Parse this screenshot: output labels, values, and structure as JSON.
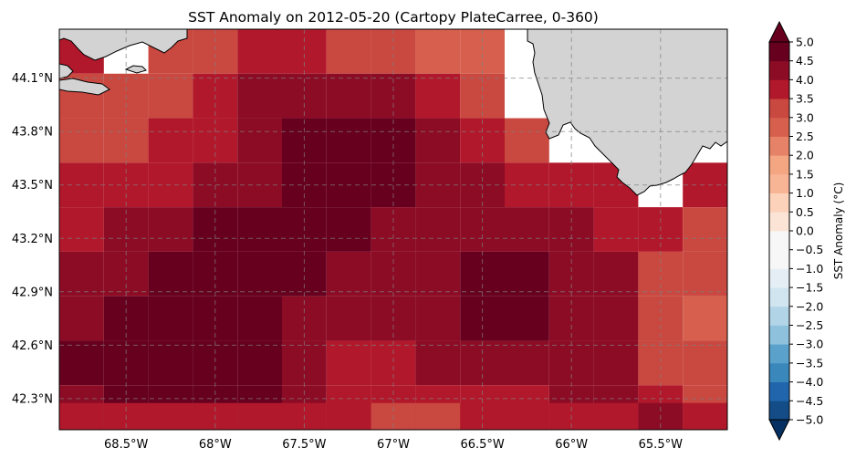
{
  "title": "SST Anomaly on 2012-05-20 (Cartopy PlateCarree, 0-360)",
  "map": {
    "lon_range": [
      -68.875,
      -65.125
    ],
    "lat_range": [
      42.125,
      44.375
    ],
    "grid_step": 0.25,
    "x_ticks": [
      {
        "lon": -68.5,
        "label": "68.5°W"
      },
      {
        "lon": -68.0,
        "label": "68°W"
      },
      {
        "lon": -67.5,
        "label": "67.5°W"
      },
      {
        "lon": -67.0,
        "label": "67°W"
      },
      {
        "lon": -66.5,
        "label": "66.5°W"
      },
      {
        "lon": -66.0,
        "label": "66°W"
      },
      {
        "lon": -65.5,
        "label": "65.5°W"
      }
    ],
    "y_ticks": [
      {
        "lat": 44.1,
        "label": "44.1°N"
      },
      {
        "lat": 43.8,
        "label": "43.8°N"
      },
      {
        "lat": 43.5,
        "label": "43.5°N"
      },
      {
        "lat": 43.2,
        "label": "43.2°N"
      },
      {
        "lat": 42.9,
        "label": "42.9°N"
      },
      {
        "lat": 42.6,
        "label": "42.6°N"
      },
      {
        "lat": 42.3,
        "label": "42.3°N"
      }
    ],
    "land_color": "#d3d3d3",
    "gridline_style": "dashed gray"
  },
  "chart_data": {
    "type": "heatmap",
    "variable": "SST Anomaly",
    "units": "°C",
    "lon_centers": [
      -68.75,
      -68.5,
      -68.25,
      -68.0,
      -67.75,
      -67.5,
      -67.25,
      -67.0,
      -66.75,
      -66.5,
      -66.25,
      -66.0,
      -65.75,
      -65.5,
      -65.25
    ],
    "lat_centers": [
      44.25,
      44.0,
      43.75,
      43.5,
      43.25,
      43.0,
      42.75,
      42.5,
      42.25
    ],
    "values": [
      [
        3.75,
        null,
        3.25,
        3.25,
        3.75,
        3.75,
        3.25,
        3.25,
        2.75,
        2.75,
        null,
        null,
        null,
        null,
        null
      ],
      [
        3.25,
        3.25,
        3.25,
        3.75,
        4.25,
        4.25,
        4.25,
        4.25,
        3.75,
        3.25,
        null,
        null,
        null,
        null,
        null
      ],
      [
        3.25,
        3.25,
        3.75,
        3.75,
        4.25,
        4.75,
        4.75,
        4.75,
        4.25,
        3.75,
        3.25,
        null,
        null,
        null,
        null
      ],
      [
        3.75,
        3.75,
        3.75,
        4.25,
        4.25,
        4.75,
        4.75,
        4.75,
        4.25,
        4.25,
        3.75,
        3.75,
        3.75,
        null,
        3.75
      ],
      [
        3.75,
        4.25,
        4.25,
        4.75,
        4.75,
        4.75,
        4.75,
        4.25,
        4.25,
        4.25,
        4.25,
        4.25,
        3.75,
        3.75,
        3.25
      ],
      [
        4.25,
        4.25,
        4.75,
        4.75,
        4.75,
        4.75,
        4.25,
        4.25,
        4.25,
        4.75,
        4.75,
        4.25,
        4.25,
        3.25,
        3.25
      ],
      [
        4.25,
        4.75,
        4.75,
        4.75,
        4.75,
        4.25,
        4.25,
        4.25,
        4.25,
        4.75,
        4.75,
        4.25,
        4.25,
        3.25,
        2.75
      ],
      [
        4.75,
        4.75,
        4.75,
        4.75,
        4.75,
        4.25,
        3.75,
        3.75,
        4.25,
        4.25,
        4.25,
        4.25,
        4.25,
        3.25,
        3.25
      ],
      [
        4.25,
        4.75,
        4.75,
        4.75,
        4.75,
        4.25,
        3.75,
        3.75,
        3.75,
        3.75,
        3.75,
        4.25,
        4.25,
        3.75,
        3.25
      ]
    ],
    "extra_bottom_row_lat": 42.15,
    "extra_bottom_row": [
      3.75,
      3.75,
      3.75,
      3.75,
      3.75,
      3.75,
      3.75,
      3.25,
      3.25,
      3.75,
      3.75,
      3.75,
      3.75,
      4.25,
      3.75
    ],
    "colorbar": {
      "label": "SST Anomaly (°C)",
      "vmin": -5.0,
      "vmax": 5.0,
      "step": 0.5,
      "extend": "both",
      "tick_labels": [
        "5.0",
        "4.5",
        "4.0",
        "3.5",
        "3.0",
        "2.5",
        "2.0",
        "1.5",
        "1.0",
        "0.5",
        "0.0",
        "−0.5",
        "−1.0",
        "−1.5",
        "−2.0",
        "−2.5",
        "−3.0",
        "−3.5",
        "−4.0",
        "−4.5",
        "−5.0"
      ],
      "colormap": "RdBu_r",
      "colors": [
        "#053061",
        "#134c87",
        "#2166ac",
        "#3a87bc",
        "#5aa1cb",
        "#8ec1dc",
        "#b1d4e7",
        "#d1e5f0",
        "#e4eef4",
        "#f7f7f7",
        "#f7f7f7",
        "#fbe4d6",
        "#fcd2bb",
        "#f8b596",
        "#f4a582",
        "#e58267",
        "#d6604d",
        "#c94840",
        "#b2182b",
        "#8c0c25",
        "#67001f"
      ]
    }
  }
}
